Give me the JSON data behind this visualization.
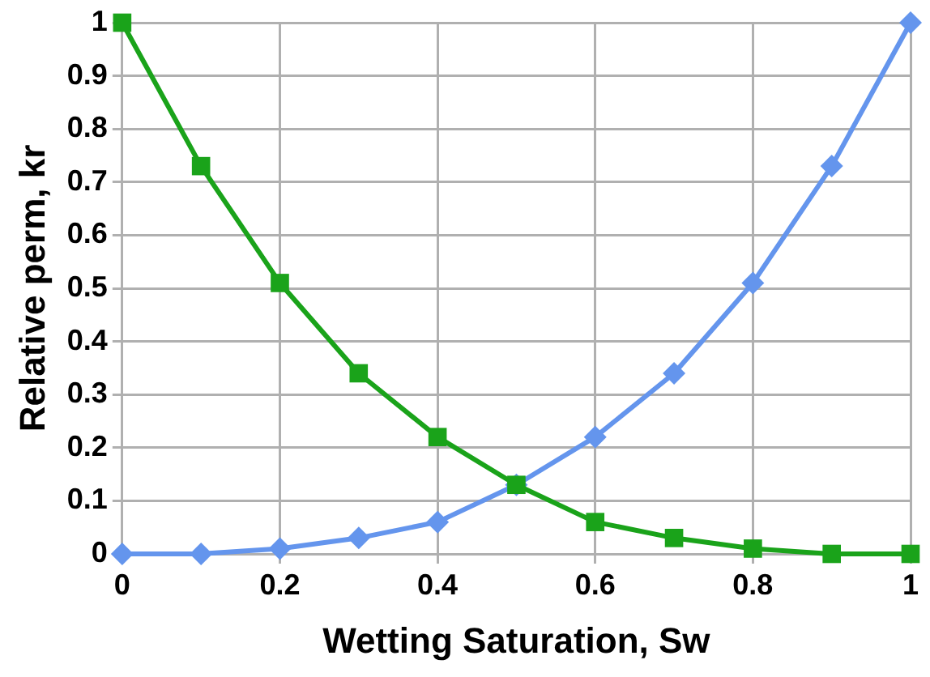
{
  "chart_data": {
    "type": "line",
    "xlabel": "Wetting Saturation, Sw",
    "ylabel": "Relative perm, kr",
    "x": [
      0,
      0.1,
      0.2,
      0.3,
      0.4,
      0.5,
      0.6,
      0.7,
      0.8,
      0.9,
      1
    ],
    "series": [
      {
        "color": "#6495ed",
        "marker": "diamond",
        "values": [
          0,
          0.0,
          0.01,
          0.03,
          0.06,
          0.13,
          0.22,
          0.34,
          0.51,
          0.73,
          1
        ]
      },
      {
        "color": "#1aa31a",
        "marker": "square",
        "values": [
          1,
          0.73,
          0.51,
          0.34,
          0.22,
          0.13,
          0.06,
          0.03,
          0.01,
          0.0,
          0
        ]
      }
    ],
    "xlim": [
      0,
      1
    ],
    "xticks": [
      0,
      0.2,
      0.4,
      0.6,
      0.8,
      1
    ],
    "ylim": [
      0,
      1
    ],
    "yticks": [
      0,
      0.1,
      0.2,
      0.3,
      0.4,
      0.5,
      0.6,
      0.7,
      0.8,
      0.9,
      1
    ],
    "grid": true,
    "legend": false
  }
}
